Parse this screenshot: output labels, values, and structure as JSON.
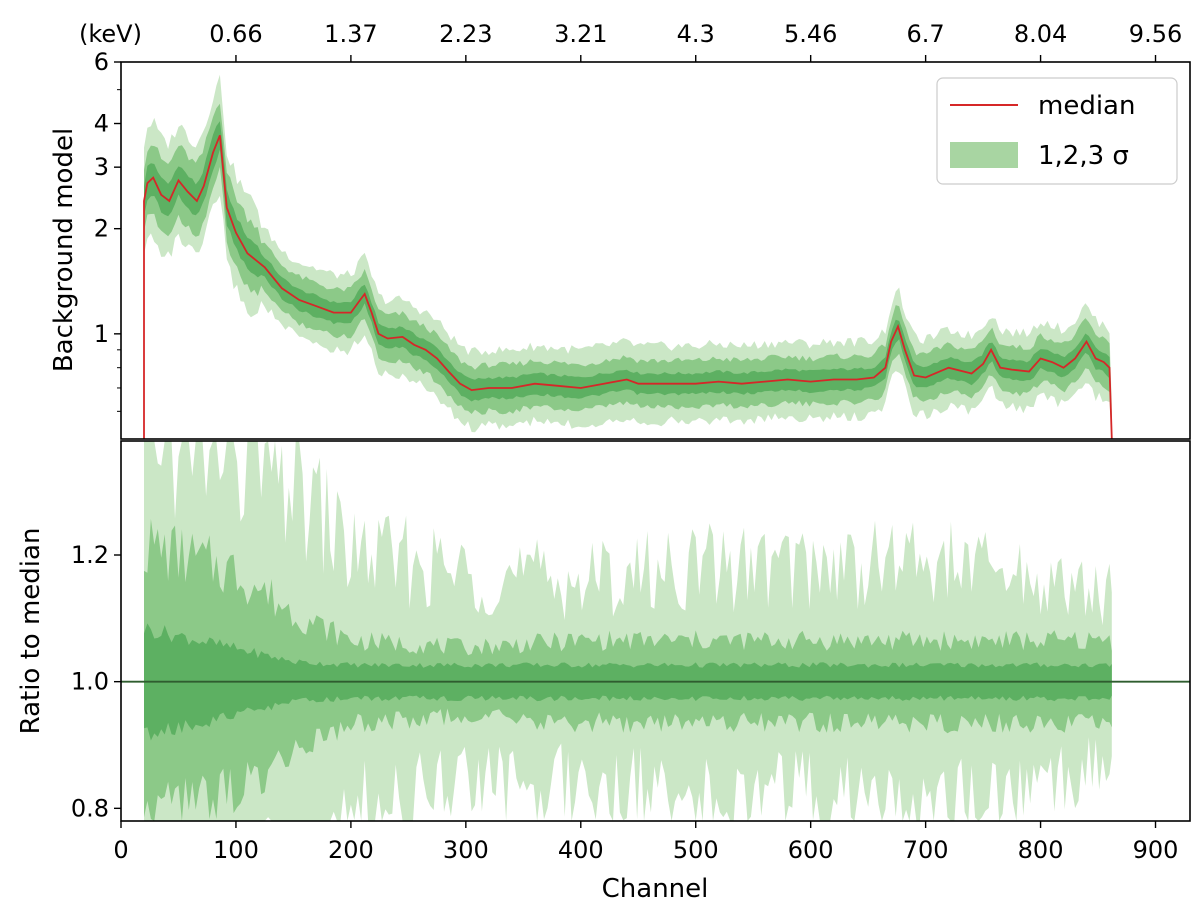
{
  "chart_data": [
    {
      "type": "area",
      "panel": "top",
      "ylabel": "Background model",
      "yscale": "log",
      "ylim": [
        0.5,
        6
      ],
      "xlim": [
        0,
        930
      ],
      "major_yticks": [
        {
          "value": 1,
          "label": "1"
        },
        {
          "value": 2,
          "label": "2"
        },
        {
          "value": 3,
          "label": "3"
        },
        {
          "value": 4,
          "label": "4"
        },
        {
          "value": 6,
          "label": "6"
        }
      ],
      "minor_yticks": [
        0.6,
        0.7,
        0.8,
        0.9,
        5
      ],
      "top_axis": {
        "unit_label": "(keV)",
        "ticks": [
          {
            "channel": 100,
            "label": "0.66"
          },
          {
            "channel": 200,
            "label": "1.37"
          },
          {
            "channel": 300,
            "label": "2.23"
          },
          {
            "channel": 400,
            "label": "3.21"
          },
          {
            "channel": 500,
            "label": "4.3"
          },
          {
            "channel": 600,
            "label": "5.46"
          },
          {
            "channel": 700,
            "label": "6.7"
          },
          {
            "channel": 800,
            "label": "8.04"
          },
          {
            "channel": 900,
            "label": "9.56"
          }
        ]
      },
      "legend": {
        "position": "top-right",
        "entries": [
          {
            "label": "median",
            "kind": "line",
            "color": "#d62728"
          },
          {
            "label": "1,2,3 σ",
            "kind": "patch",
            "color": "#a8d5a2"
          }
        ]
      },
      "series": [
        {
          "name": "median",
          "color": "#d62728",
          "x": [
            20,
            23,
            28,
            35,
            42,
            50,
            58,
            66,
            72,
            80,
            86,
            92,
            100,
            110,
            125,
            140,
            155,
            170,
            185,
            200,
            208,
            212,
            218,
            224,
            232,
            245,
            255,
            265,
            275,
            285,
            295,
            305,
            320,
            340,
            360,
            380,
            400,
            420,
            440,
            450,
            460,
            480,
            500,
            520,
            540,
            560,
            580,
            600,
            620,
            640,
            655,
            665,
            670,
            676,
            682,
            690,
            700,
            720,
            740,
            750,
            757,
            765,
            775,
            790,
            800,
            810,
            820,
            830,
            840,
            848,
            855,
            860,
            862
          ],
          "y": [
            2.4,
            2.7,
            2.8,
            2.5,
            2.4,
            2.75,
            2.55,
            2.4,
            2.65,
            3.3,
            3.7,
            2.3,
            1.95,
            1.7,
            1.55,
            1.35,
            1.25,
            1.2,
            1.15,
            1.15,
            1.25,
            1.3,
            1.15,
            1.0,
            0.97,
            0.98,
            0.93,
            0.9,
            0.85,
            0.78,
            0.72,
            0.69,
            0.7,
            0.7,
            0.72,
            0.71,
            0.7,
            0.72,
            0.74,
            0.72,
            0.72,
            0.72,
            0.72,
            0.73,
            0.72,
            0.73,
            0.74,
            0.73,
            0.74,
            0.74,
            0.75,
            0.8,
            0.95,
            1.05,
            0.9,
            0.76,
            0.75,
            0.8,
            0.77,
            0.82,
            0.9,
            0.8,
            0.79,
            0.78,
            0.85,
            0.83,
            0.8,
            0.85,
            0.95,
            0.85,
            0.83,
            0.8,
            0.5
          ]
        }
      ],
      "band_relative_half_widths": [
        0.06,
        0.14,
        0.24
      ]
    },
    {
      "type": "area",
      "panel": "bottom",
      "xlabel": "Channel",
      "ylabel": "Ratio to median",
      "xlim": [
        0,
        930
      ],
      "ylim": [
        0.78,
        1.38
      ],
      "xticks": [
        {
          "value": 0,
          "label": "0"
        },
        {
          "value": 100,
          "label": "100"
        },
        {
          "value": 200,
          "label": "200"
        },
        {
          "value": 300,
          "label": "300"
        },
        {
          "value": 400,
          "label": "400"
        },
        {
          "value": 500,
          "label": "500"
        },
        {
          "value": 600,
          "label": "600"
        },
        {
          "value": 700,
          "label": "700"
        },
        {
          "value": 800,
          "label": "800"
        },
        {
          "value": 900,
          "label": "900"
        }
      ],
      "yticks": [
        {
          "value": 0.8,
          "label": "0.8"
        },
        {
          "value": 1.0,
          "label": "1.0"
        },
        {
          "value": 1.2,
          "label": "1.2"
        }
      ],
      "reference_line": 1.0,
      "x_range": [
        20,
        862
      ],
      "sigma_envelopes": [
        {
          "sigma": 1,
          "x": [
            20,
            100,
            150,
            200,
            300,
            400,
            500,
            600,
            700,
            800,
            862
          ],
          "half_width": [
            0.08,
            0.05,
            0.03,
            0.025,
            0.025,
            0.025,
            0.025,
            0.025,
            0.025,
            0.025,
            0.025
          ]
        },
        {
          "sigma": 2,
          "x": [
            20,
            100,
            150,
            200,
            300,
            400,
            500,
            600,
            700,
            800,
            862
          ],
          "half_width": [
            0.2,
            0.16,
            0.1,
            0.06,
            0.05,
            0.06,
            0.06,
            0.06,
            0.06,
            0.06,
            0.06
          ]
        },
        {
          "sigma": 3,
          "x": [
            20,
            100,
            150,
            200,
            300,
            400,
            500,
            600,
            700,
            800,
            862
          ],
          "half_width": [
            0.38,
            0.32,
            0.28,
            0.18,
            0.15,
            0.14,
            0.16,
            0.16,
            0.17,
            0.14,
            0.12
          ]
        }
      ]
    }
  ],
  "colors": {
    "median": "#d62728",
    "band1": "#5db062",
    "band2": "#8cc988",
    "band3": "#cbe7c6",
    "ratio_line": "#2f5d2f"
  }
}
